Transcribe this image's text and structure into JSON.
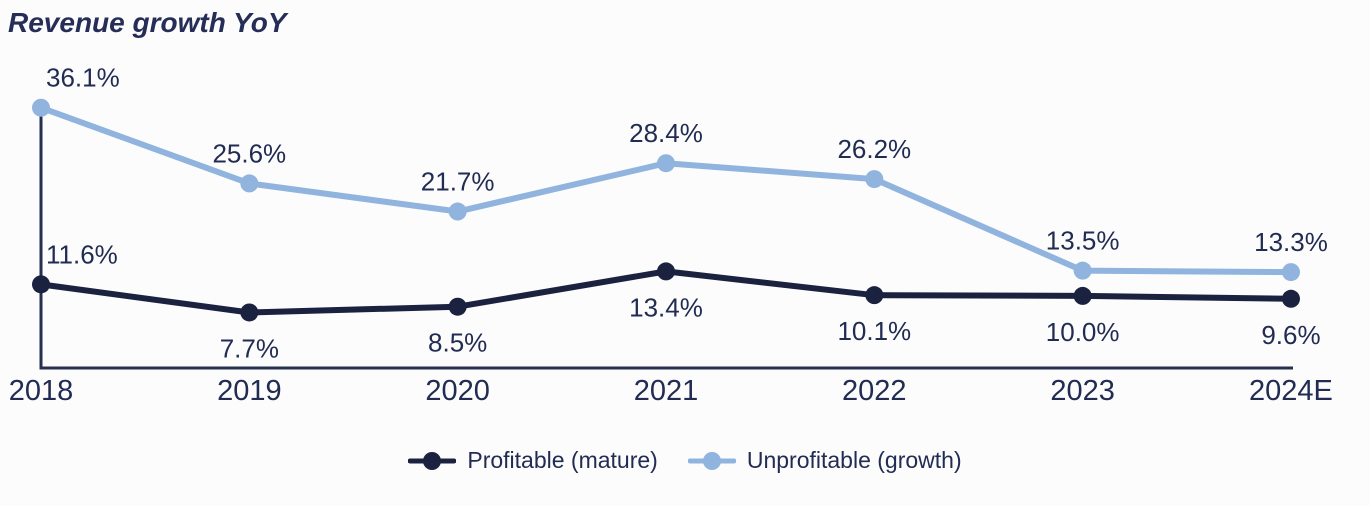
{
  "title": "Revenue growth YoY",
  "colors": {
    "background": "#fcfcfd",
    "title": "#262e58",
    "axis": "#26304f",
    "label_text": "#222c52",
    "profitable_line": "#1a2240",
    "unprofitable_line": "#90b4de"
  },
  "chart_data": {
    "type": "line",
    "title": "Revenue growth YoY",
    "categories": [
      "2018",
      "2019",
      "2020",
      "2021",
      "2022",
      "2023",
      "2024E"
    ],
    "series": [
      {
        "name": "Profitable (mature)",
        "color": "#1a2240",
        "values": [
          11.6,
          7.7,
          8.5,
          13.4,
          10.1,
          10.0,
          9.6
        ],
        "label_positions": [
          "above",
          "below",
          "below",
          "below",
          "below",
          "below",
          "below"
        ]
      },
      {
        "name": "Unprofitable (growth)",
        "color": "#90b4de",
        "values": [
          36.1,
          25.6,
          21.7,
          28.4,
          26.2,
          13.5,
          13.3
        ],
        "label_positions": [
          "above",
          "above",
          "above",
          "above",
          "above",
          "above",
          "above"
        ]
      }
    ],
    "value_suffix": "%",
    "value_decimals": 1,
    "ylim": [
      0,
      38
    ],
    "grid": false,
    "y_axis_labels": false,
    "legend_position": "bottom-center",
    "xlabel": "",
    "ylabel": ""
  }
}
